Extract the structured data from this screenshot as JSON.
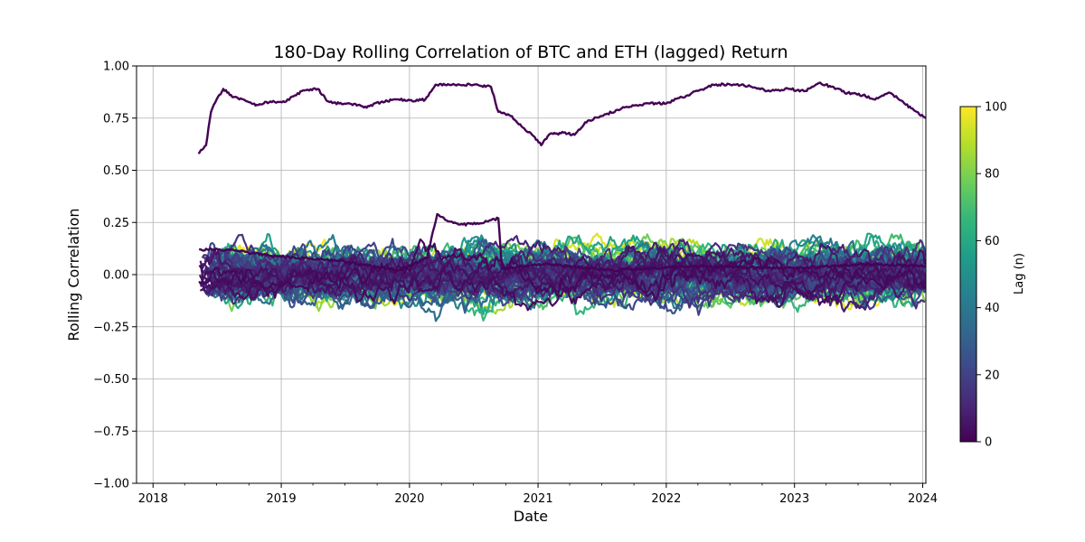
{
  "chart_data": {
    "type": "line",
    "title": "180-Day Rolling Correlation of BTC and ETH (lagged) Return",
    "xlabel": "Date",
    "ylabel": "Rolling Correlation",
    "x_range": [
      "2017-11-15",
      "2024-01-10"
    ],
    "ylim": [
      -1.0,
      1.0
    ],
    "x_tick_labels": [
      "2018",
      "2019",
      "2020",
      "2021",
      "2022",
      "2023",
      "2024"
    ],
    "x_tick_dates": [
      "2018-01-01",
      "2019-01-01",
      "2020-01-01",
      "2021-01-01",
      "2022-01-01",
      "2023-01-01",
      "2024-01-01"
    ],
    "y_tick_values": [
      -1.0,
      -0.75,
      -0.5,
      -0.25,
      0.0,
      0.25,
      0.5,
      0.75,
      1.0
    ],
    "y_tick_labels": [
      "−1.00",
      "−0.75",
      "−0.50",
      "−0.25",
      "0.00",
      "0.25",
      "0.50",
      "0.75",
      "1.00"
    ],
    "grid": true,
    "colormap": "viridis",
    "colorbar": {
      "label": "Lag (n)",
      "range": [
        0,
        100
      ],
      "tick_values": [
        0,
        20,
        40,
        60,
        80,
        100
      ],
      "tick_labels": [
        "0",
        "20",
        "40",
        "60",
        "80",
        "100"
      ]
    },
    "lag_series_count": 101,
    "lag_noise_band": {
      "centre": 0.0,
      "typical_amplitude": 0.18,
      "approx_min": -0.32,
      "approx_max": 0.26,
      "note_on_start": "series for lag n begins 180 days plus n days after first date"
    },
    "series": [
      {
        "lag": 0,
        "color": "#440154",
        "points": [
          [
            "2018-05-10",
            0.58
          ],
          [
            "2018-06-01",
            0.62
          ],
          [
            "2018-06-15",
            0.78
          ],
          [
            "2018-07-01",
            0.84
          ],
          [
            "2018-07-20",
            0.89
          ],
          [
            "2018-08-15",
            0.85
          ],
          [
            "2018-09-15",
            0.84
          ],
          [
            "2018-10-20",
            0.81
          ],
          [
            "2018-12-01",
            0.83
          ],
          [
            "2019-01-15",
            0.83
          ],
          [
            "2019-03-01",
            0.88
          ],
          [
            "2019-04-15",
            0.89
          ],
          [
            "2019-05-15",
            0.83
          ],
          [
            "2019-06-15",
            0.82
          ],
          [
            "2019-07-15",
            0.82
          ],
          [
            "2019-09-01",
            0.8
          ],
          [
            "2019-10-15",
            0.83
          ],
          [
            "2019-12-01",
            0.84
          ],
          [
            "2020-01-10",
            0.83
          ],
          [
            "2020-02-15",
            0.84
          ],
          [
            "2020-03-15",
            0.91
          ],
          [
            "2020-05-01",
            0.91
          ],
          [
            "2020-07-01",
            0.91
          ],
          [
            "2020-08-20",
            0.9
          ],
          [
            "2020-09-10",
            0.78
          ],
          [
            "2020-10-15",
            0.76
          ],
          [
            "2020-11-15",
            0.71
          ],
          [
            "2020-12-15",
            0.67
          ],
          [
            "2021-01-10",
            0.62
          ],
          [
            "2021-02-01",
            0.67
          ],
          [
            "2021-03-15",
            0.68
          ],
          [
            "2021-04-15",
            0.67
          ],
          [
            "2021-05-15",
            0.73
          ],
          [
            "2021-07-01",
            0.76
          ],
          [
            "2021-08-15",
            0.79
          ],
          [
            "2021-10-01",
            0.81
          ],
          [
            "2021-11-15",
            0.82
          ],
          [
            "2022-01-01",
            0.82
          ],
          [
            "2022-02-15",
            0.85
          ],
          [
            "2022-04-01",
            0.88
          ],
          [
            "2022-05-15",
            0.91
          ],
          [
            "2022-07-15",
            0.91
          ],
          [
            "2022-09-01",
            0.9
          ],
          [
            "2022-10-15",
            0.88
          ],
          [
            "2022-12-15",
            0.89
          ],
          [
            "2023-02-01",
            0.88
          ],
          [
            "2023-03-15",
            0.92
          ],
          [
            "2023-04-15",
            0.9
          ],
          [
            "2023-06-01",
            0.87
          ],
          [
            "2023-07-15",
            0.86
          ],
          [
            "2023-08-15",
            0.84
          ],
          [
            "2023-10-01",
            0.87
          ],
          [
            "2023-11-10",
            0.82
          ],
          [
            "2023-12-15",
            0.78
          ],
          [
            "2024-01-10",
            0.75
          ]
        ]
      },
      {
        "lag": 1,
        "color": "#440356",
        "points": [
          [
            "2018-05-12",
            0.12
          ],
          [
            "2018-08-01",
            0.12
          ],
          [
            "2018-12-01",
            0.09
          ],
          [
            "2019-06-01",
            0.07
          ],
          [
            "2019-12-01",
            0.02
          ],
          [
            "2020-02-20",
            0.08
          ],
          [
            "2020-03-20",
            0.29
          ],
          [
            "2020-04-15",
            0.26
          ],
          [
            "2020-06-01",
            0.24
          ],
          [
            "2020-08-01",
            0.25
          ],
          [
            "2020-09-10",
            0.27
          ],
          [
            "2020-09-20",
            0.03
          ],
          [
            "2021-02-01",
            0.05
          ],
          [
            "2021-08-01",
            0.02
          ],
          [
            "2022-03-01",
            0.04
          ],
          [
            "2023-01-01",
            0.03
          ],
          [
            "2023-08-01",
            0.05
          ],
          [
            "2024-01-10",
            0.04
          ]
        ]
      }
    ]
  }
}
